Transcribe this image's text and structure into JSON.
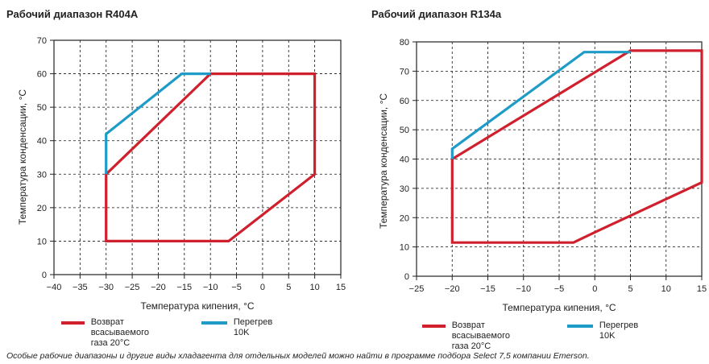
{
  "colors": {
    "suction_return": "#d0202e",
    "superheat": "#1f9bc8",
    "grid": "#111111"
  },
  "legend": {
    "suction_return": "Возврат всасываемого\nгаза 20°C",
    "superheat": "Перегрев 10K"
  },
  "footnote": "Особые рабочие диапазоны и другие виды хладагента для отдельных моделей можно найти в программе подбора Select 7,5 компании Emerson.",
  "chart_data": [
    {
      "type": "line",
      "title": "Рабочий диапазон R404A",
      "xlabel": "Температура кипения, °C",
      "ylabel": "Температура конденсации, °C",
      "xlim": [
        -40,
        15
      ],
      "ylim": [
        0,
        70
      ],
      "xticks": [
        -40,
        -35,
        -30,
        -25,
        -20,
        -15,
        -10,
        -5,
        0,
        5,
        10,
        15
      ],
      "yticks": [
        0,
        10,
        20,
        30,
        40,
        50,
        60,
        70
      ],
      "grid": "dashed",
      "legend_position": "bottom",
      "series": [
        {
          "name": "Возврат всасываемого газа 20°C",
          "color": "#d0202e",
          "closed": true,
          "points": [
            [
              -30,
              10
            ],
            [
              -6.5,
              10
            ],
            [
              10,
              30
            ],
            [
              10,
              60
            ],
            [
              -10,
              60
            ],
            [
              -30,
              30
            ]
          ]
        },
        {
          "name": "Перегрев 10K",
          "color": "#1f9bc8",
          "closed": false,
          "points": [
            [
              -30,
              30
            ],
            [
              -30,
              42
            ],
            [
              -15.5,
              60
            ],
            [
              -10,
              60
            ]
          ]
        }
      ]
    },
    {
      "type": "line",
      "title": "Рабочий диапазон R134a",
      "xlabel": "Температура кипения, °C",
      "ylabel": "Температура конденсации, °C",
      "xlim": [
        -25,
        15
      ],
      "ylim": [
        0,
        80
      ],
      "xticks": [
        -25,
        -20,
        -15,
        -10,
        -5,
        0,
        5,
        10,
        15
      ],
      "yticks": [
        0,
        10,
        20,
        30,
        40,
        50,
        60,
        70,
        80
      ],
      "grid": "dashed",
      "legend_position": "bottom",
      "series": [
        {
          "name": "Возврат всасываемого газа 20°C",
          "color": "#d0202e",
          "closed": true,
          "points": [
            [
              -20,
              11.5
            ],
            [
              -3,
              11.5
            ],
            [
              0,
              15
            ],
            [
              15,
              32
            ],
            [
              15,
              77
            ],
            [
              5,
              77
            ],
            [
              -20,
              40
            ]
          ]
        },
        {
          "name": "Перегрев 10K",
          "color": "#1f9bc8",
          "closed": false,
          "points": [
            [
              -20,
              40
            ],
            [
              -20,
              43.5
            ],
            [
              -1.5,
              76.5
            ],
            [
              5,
              76.5
            ]
          ]
        }
      ]
    }
  ]
}
